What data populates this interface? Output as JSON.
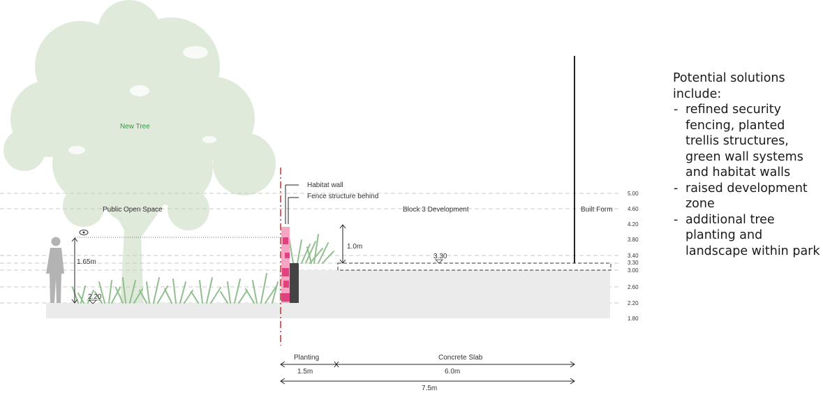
{
  "labels": {
    "new_tree": "New Tree",
    "habitat_wall": "Habitat wall",
    "fence_structure": "Fence structure behind",
    "public_open_space": "Public Open Space",
    "block3": "Block 3 Development",
    "built_form": "Built Form",
    "eye_height": "1.65m",
    "ground_level": "2.20",
    "raise": "1.0m",
    "slab_level": "3.30"
  },
  "levels": [
    "5.00",
    "4.60",
    "4.20",
    "3.80",
    "3.40",
    "3.30",
    "3.00",
    "2.60",
    "2.20",
    "1.80"
  ],
  "dimensions": {
    "planting_label": "Planting",
    "planting_value": "1.5m",
    "slab_label": "Concrete Slab",
    "slab_value": "6.0m",
    "total_value": "7.5m"
  },
  "notes": {
    "heading": "Potential solutions include:",
    "items": [
      "refined security fencing, planted trellis structures, green wall systems and habitat walls",
      "raised development zone",
      "additional tree planting and landscape within park"
    ]
  },
  "colors": {
    "tree": "#dfeadb",
    "grass": "#8fbf8c",
    "ground": "#ebebeb",
    "habitat_wall": "#e0417f",
    "boundary": "#d22a2a",
    "figure": "#b3b3b3"
  }
}
